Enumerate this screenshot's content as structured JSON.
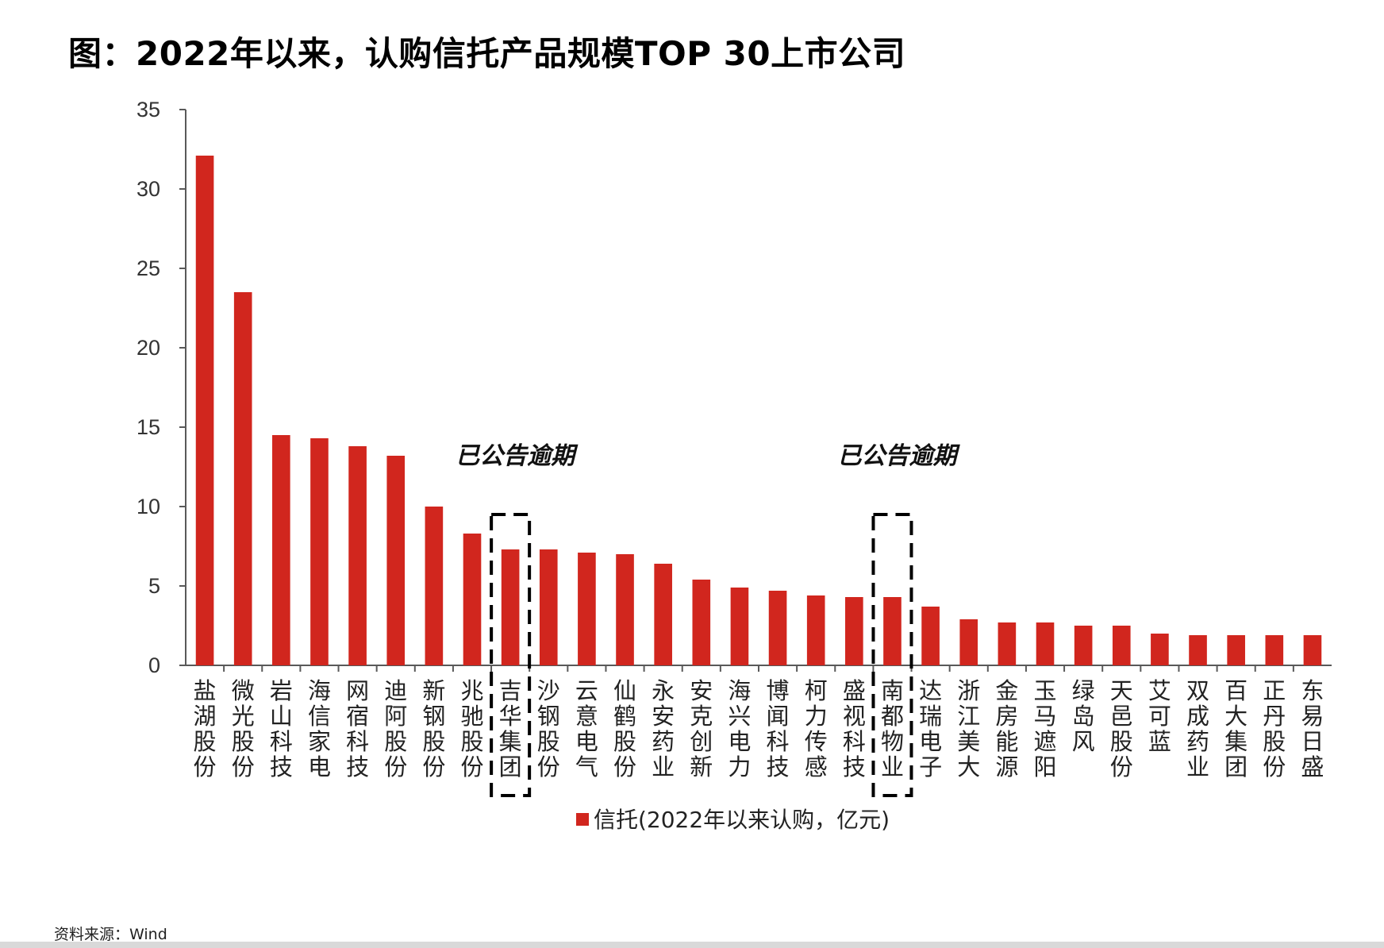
{
  "title": "图：2022年以来，认购信托产品规模TOP 30上市公司",
  "source": "资料来源：Wind",
  "colors": {
    "bar": "#d1261e",
    "axis": "#595959",
    "text": "#222222"
  },
  "chart_data": {
    "type": "bar",
    "categories": [
      "盐湖股份",
      "微光股份",
      "岩山科技",
      "海信家电",
      "网宿科技",
      "迪阿股份",
      "新钢股份",
      "兆驰股份",
      "吉华集团",
      "沙钢股份",
      "云意电气",
      "仙鹤股份",
      "永安药业",
      "安克创新",
      "海兴电力",
      "博闻科技",
      "柯力传感",
      "盛视科技",
      "南都物业",
      "达瑞电子",
      "浙江美大",
      "金房能源",
      "玉马遮阳",
      "绿岛风",
      "天邑股份",
      "艾可蓝",
      "双成药业",
      "百大集团",
      "正丹股份",
      "东易日盛"
    ],
    "series": [
      {
        "name": "信托(2022年以来认购，亿元)",
        "values": [
          32.1,
          23.5,
          14.5,
          14.3,
          13.8,
          13.2,
          10.0,
          8.3,
          7.3,
          7.3,
          7.1,
          7.0,
          6.4,
          5.4,
          4.9,
          4.7,
          4.4,
          4.3,
          4.3,
          3.7,
          2.9,
          2.7,
          2.7,
          2.5,
          2.5,
          2.0,
          1.9,
          1.9,
          1.9,
          1.9
        ]
      }
    ],
    "ylim": [
      0,
      35
    ],
    "yticks": [
      0,
      5,
      10,
      15,
      20,
      25,
      30,
      35
    ],
    "xlabel": "",
    "ylabel": "",
    "legend_position": "bottom-center",
    "grid": false,
    "annotations": [
      {
        "text": "已公告逾期",
        "category": "吉华集团"
      },
      {
        "text": "已公告逾期",
        "category": "南都物业"
      }
    ]
  }
}
